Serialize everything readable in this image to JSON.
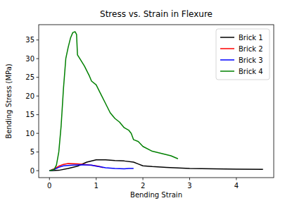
{
  "chart_data": {
    "type": "line",
    "title": "Stress vs. Strain in Flexure",
    "x_label": "Bending Strain",
    "y_label": "Bending Stress (MPa)",
    "xlim": [
      -0.23,
      4.8
    ],
    "ylim": [
      -1.86,
      39.1
    ],
    "xticks": [
      0,
      1,
      2,
      3,
      4
    ],
    "yticks": [
      0,
      5,
      10,
      15,
      20,
      25,
      30,
      35
    ],
    "grid": false,
    "legend": "upper right",
    "series": [
      {
        "name": "Brick 1",
        "color": "#000000",
        "x": [
          0,
          0.2,
          0.4,
          0.6,
          0.8,
          1.0,
          1.2,
          1.4,
          1.6,
          1.8,
          1.9,
          2.0,
          2.2,
          2.5,
          3.0,
          3.5,
          4.0,
          4.57
        ],
        "values": [
          0,
          0.1,
          0.6,
          1.2,
          2.3,
          2.9,
          2.9,
          2.7,
          2.6,
          2.3,
          1.8,
          1.3,
          1.1,
          0.9,
          0.6,
          0.5,
          0.4,
          0.35
        ]
      },
      {
        "name": "Brick 2",
        "color": "#ff0000",
        "x": [
          0,
          0.1,
          0.2,
          0.3,
          0.4,
          0.6,
          0.8,
          1.0,
          1.1,
          1.15
        ],
        "values": [
          0,
          0.5,
          1.2,
          1.7,
          1.9,
          1.8,
          1.6,
          1.3,
          1.0,
          0.8
        ]
      },
      {
        "name": "Brick 3",
        "color": "#0000ff",
        "x": [
          0,
          0.1,
          0.2,
          0.3,
          0.5,
          0.7,
          0.9,
          1.0,
          1.1,
          1.2,
          1.4,
          1.6,
          1.7,
          1.8
        ],
        "values": [
          0,
          0.3,
          0.9,
          1.3,
          1.5,
          1.6,
          1.5,
          1.2,
          1.0,
          0.8,
          0.6,
          0.5,
          0.6,
          0.6
        ]
      },
      {
        "name": "Brick 4",
        "color": "#008000",
        "x": [
          0,
          0.1,
          0.15,
          0.2,
          0.25,
          0.3,
          0.35,
          0.4,
          0.45,
          0.5,
          0.55,
          0.58,
          0.6,
          0.65,
          0.75,
          0.85,
          0.9,
          1.0,
          1.1,
          1.2,
          1.3,
          1.4,
          1.5,
          1.6,
          1.7,
          1.75,
          1.8,
          1.9,
          2.0,
          2.2,
          2.4,
          2.6,
          2.75
        ],
        "values": [
          0,
          0.3,
          1.5,
          5,
          12,
          22,
          30,
          33,
          35.5,
          37,
          37.2,
          36.5,
          31,
          30,
          28,
          25.5,
          24,
          23,
          20.5,
          18,
          15.5,
          14,
          13,
          11.5,
          10.8,
          10,
          8.3,
          7.8,
          6.5,
          5.2,
          4.6,
          4.0,
          3.2
        ]
      }
    ]
  }
}
